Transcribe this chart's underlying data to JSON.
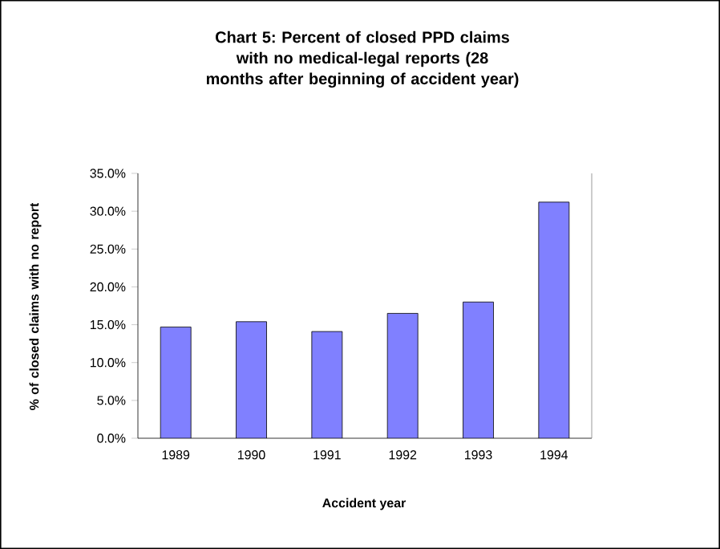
{
  "chart_data": {
    "type": "bar",
    "title": "Chart 5: Percent of closed PPD claims with no medical-legal reports (28 months after beginning of accident year)",
    "xlabel": "Accident year",
    "ylabel": "% of closed claims with no report",
    "categories": [
      "1989",
      "1990",
      "1991",
      "1992",
      "1993",
      "1994"
    ],
    "values": [
      14.7,
      15.4,
      14.1,
      16.5,
      18.0,
      31.2
    ],
    "color": "#8080ff",
    "ylim": [
      0,
      35
    ],
    "yticks": [
      {
        "value": 0,
        "label": "0.0%"
      },
      {
        "value": 5,
        "label": "5.0%"
      },
      {
        "value": 10,
        "label": "10.0%"
      },
      {
        "value": 15,
        "label": "15.0%"
      },
      {
        "value": 20,
        "label": "20.0%"
      },
      {
        "value": 25,
        "label": "25.0%"
      },
      {
        "value": 30,
        "label": "30.0%"
      },
      {
        "value": 35,
        "label": "35.0%"
      }
    ],
    "grid": false
  }
}
